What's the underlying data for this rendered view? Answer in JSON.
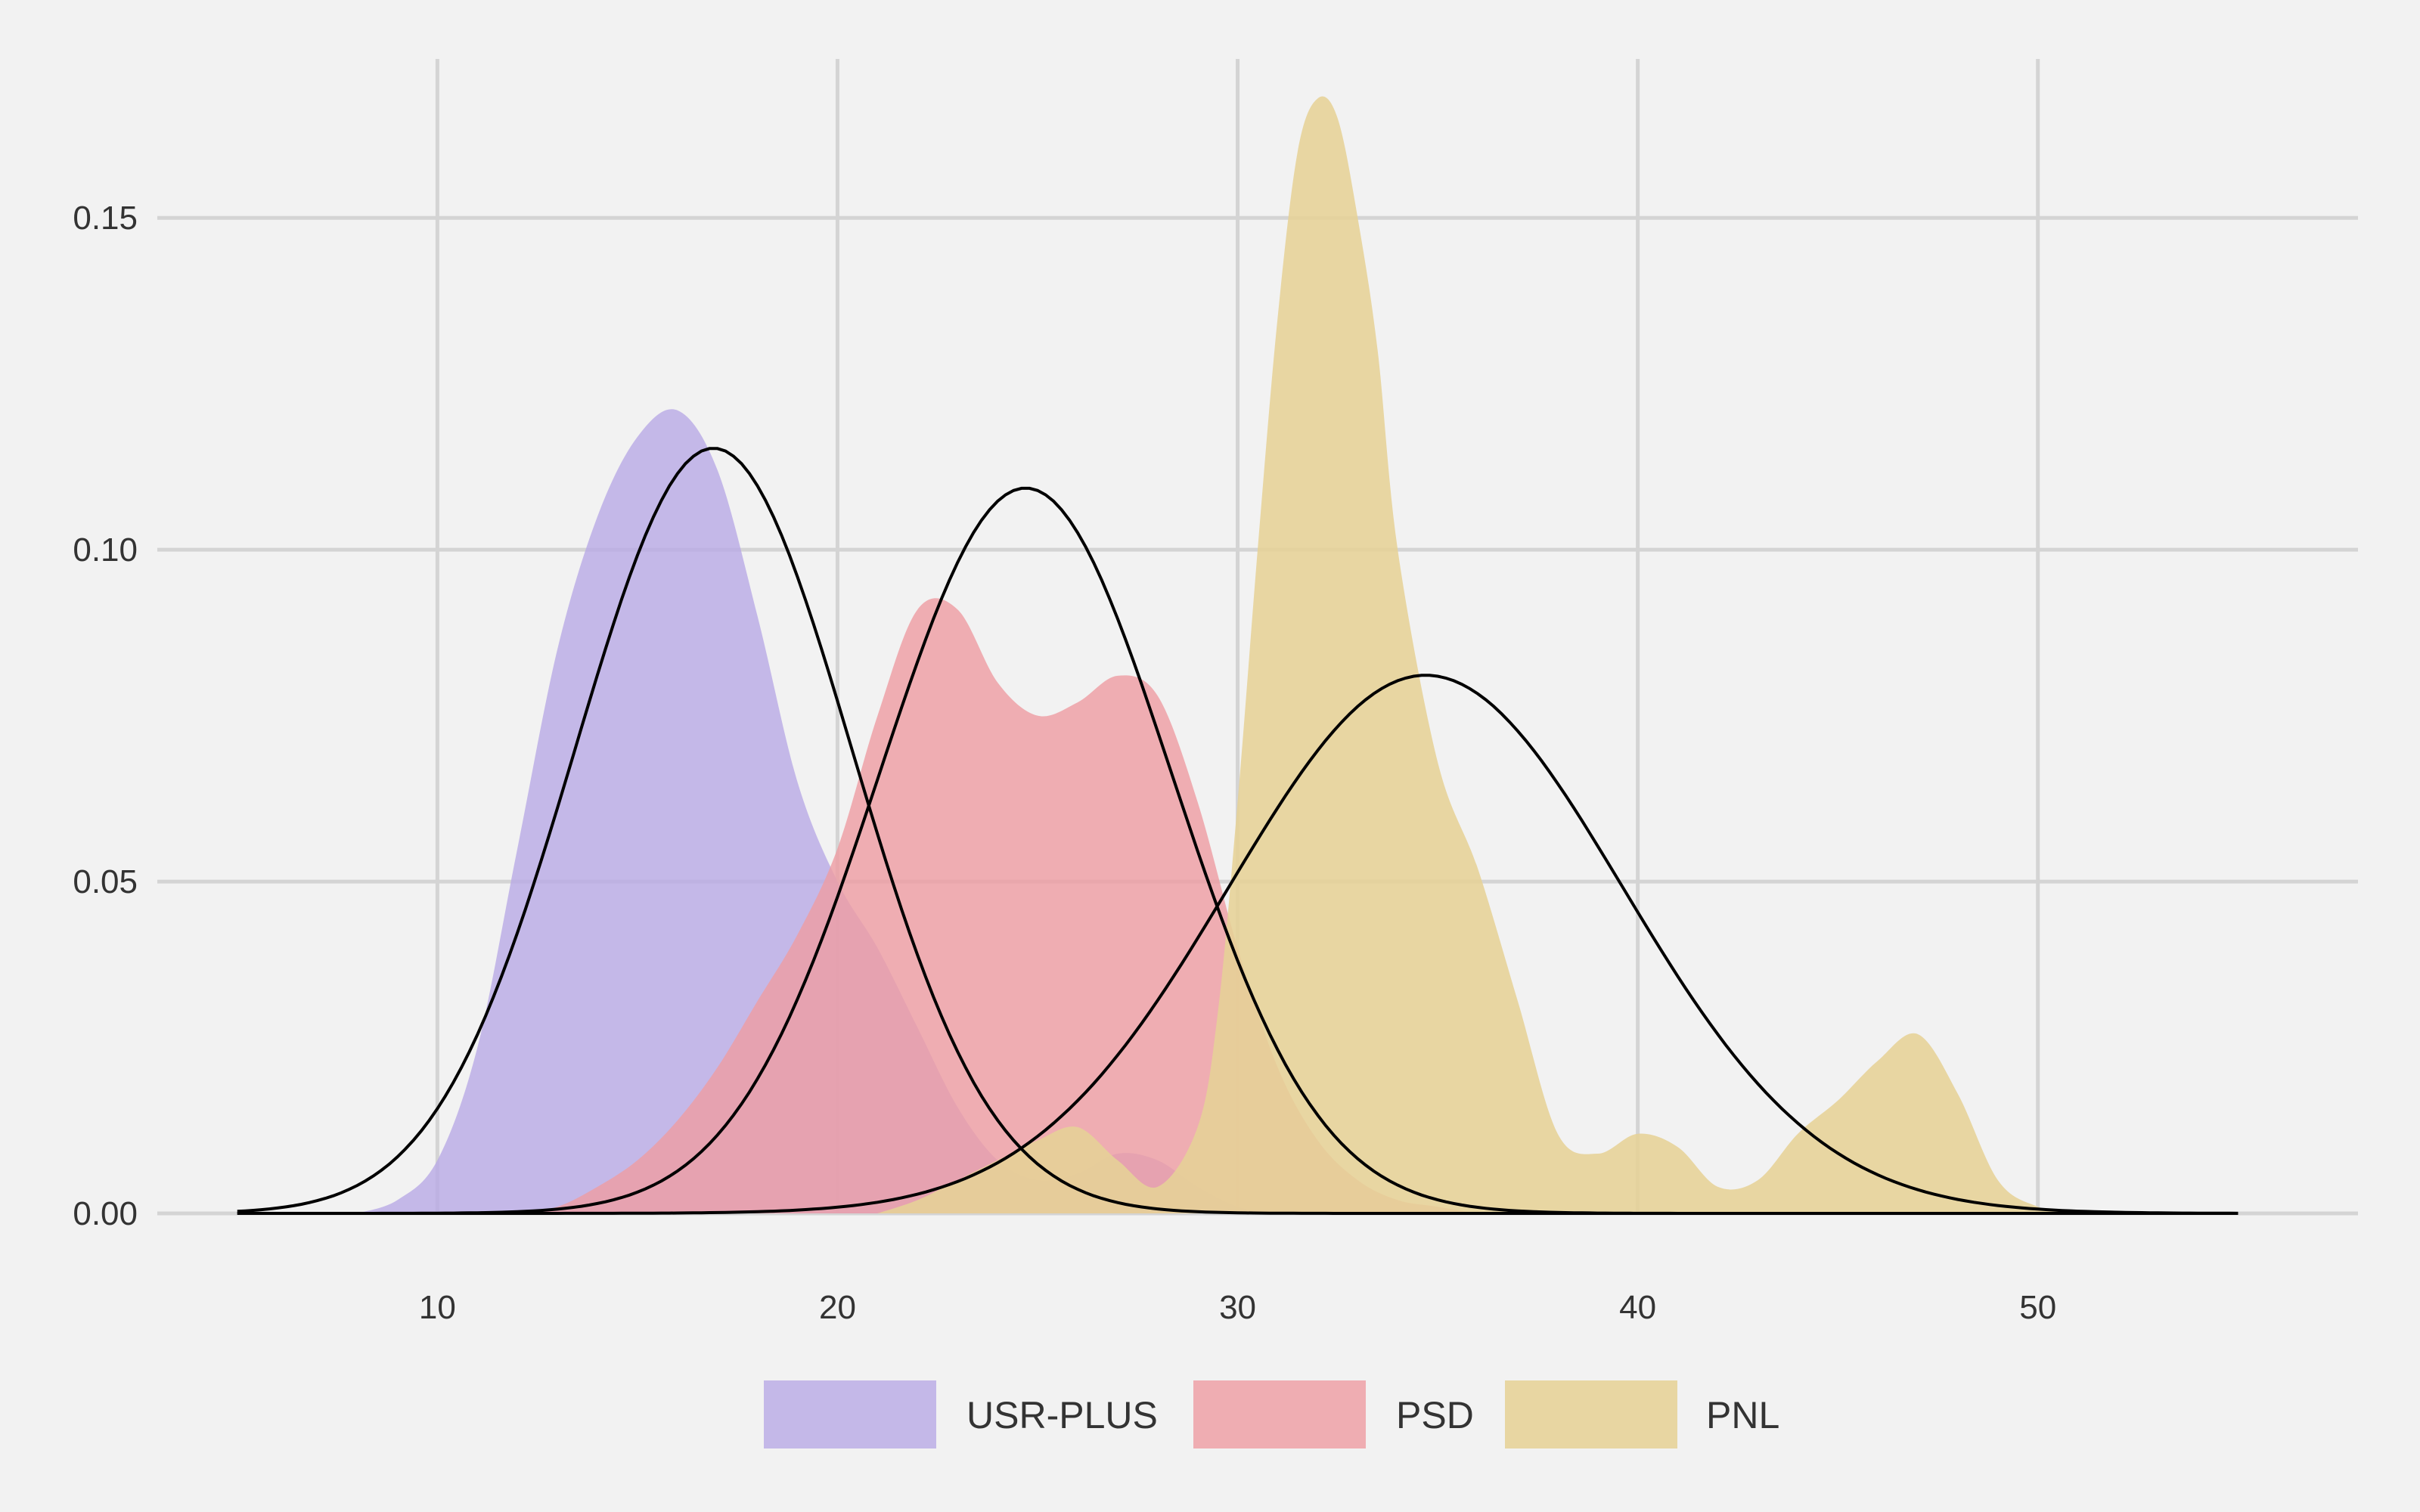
{
  "chart_data": {
    "type": "area",
    "title": "",
    "xlabel": "",
    "ylabel": "",
    "xlim": [
      3,
      58
    ],
    "ylim": [
      0,
      0.176
    ],
    "x_ticks": [
      10,
      20,
      30,
      40,
      50
    ],
    "x_tick_labels": [
      "10",
      "20",
      "30",
      "40",
      "50"
    ],
    "y_ticks": [
      0,
      0.05,
      0.1,
      0.15
    ],
    "y_tick_labels": [
      "0.00",
      "0.05",
      "0.10",
      "0.15"
    ],
    "grid": true,
    "legend_position": "bottom",
    "series": [
      {
        "name": "USR-PLUS",
        "color": "#b7a8e6",
        "opacity": 0.78,
        "density": {
          "x": [
            8,
            9,
            10,
            11,
            12,
            13,
            14,
            15,
            16,
            17,
            18,
            19,
            20,
            21,
            22,
            23,
            24,
            25,
            26,
            27,
            28,
            29,
            30,
            31,
            32
          ],
          "y": [
            0.0,
            0.002,
            0.008,
            0.025,
            0.055,
            0.085,
            0.105,
            0.117,
            0.121,
            0.112,
            0.09,
            0.065,
            0.05,
            0.04,
            0.028,
            0.016,
            0.008,
            0.005,
            0.006,
            0.009,
            0.008,
            0.004,
            0.001,
            0.0,
            0.0
          ]
        },
        "normal_fit": {
          "mean": 16.9,
          "sd": 3.46
        }
      },
      {
        "name": "PSD",
        "color": "#ee9ea3",
        "opacity": 0.82,
        "density": {
          "x": [
            12,
            13,
            14,
            15,
            16,
            17,
            18,
            19,
            20,
            21,
            22,
            23,
            24,
            25,
            26,
            27,
            28,
            29,
            30,
            31,
            32,
            33,
            34,
            35,
            36
          ],
          "y": [
            0.0,
            0.001,
            0.004,
            0.008,
            0.014,
            0.022,
            0.032,
            0.042,
            0.055,
            0.075,
            0.091,
            0.091,
            0.08,
            0.075,
            0.077,
            0.081,
            0.078,
            0.062,
            0.04,
            0.022,
            0.011,
            0.005,
            0.002,
            0.001,
            0.0
          ]
        },
        "normal_fit": {
          "mean": 24.7,
          "sd": 3.65
        }
      },
      {
        "name": "PNL",
        "color": "#e6d196",
        "opacity": 0.88,
        "density": {
          "x": [
            21,
            22,
            23,
            24,
            25,
            26,
            27,
            28,
            29,
            29.5,
            30,
            30.5,
            31,
            31.5,
            32,
            32.5,
            33,
            33.5,
            34,
            35,
            36,
            37,
            38,
            39,
            40,
            41,
            42,
            43,
            44,
            45,
            46,
            47,
            48,
            49,
            50,
            51
          ],
          "y": [
            0.0,
            0.002,
            0.005,
            0.008,
            0.011,
            0.013,
            0.008,
            0.004,
            0.013,
            0.03,
            0.062,
            0.1,
            0.135,
            0.16,
            0.168,
            0.165,
            0.15,
            0.13,
            0.1,
            0.068,
            0.052,
            0.032,
            0.012,
            0.009,
            0.012,
            0.01,
            0.004,
            0.005,
            0.012,
            0.017,
            0.023,
            0.027,
            0.018,
            0.005,
            0.001,
            0.0
          ]
        },
        "normal_fit": {
          "mean": 34.7,
          "sd": 4.92
        }
      }
    ],
    "normal_fit_range": [
      5,
      55
    ]
  }
}
